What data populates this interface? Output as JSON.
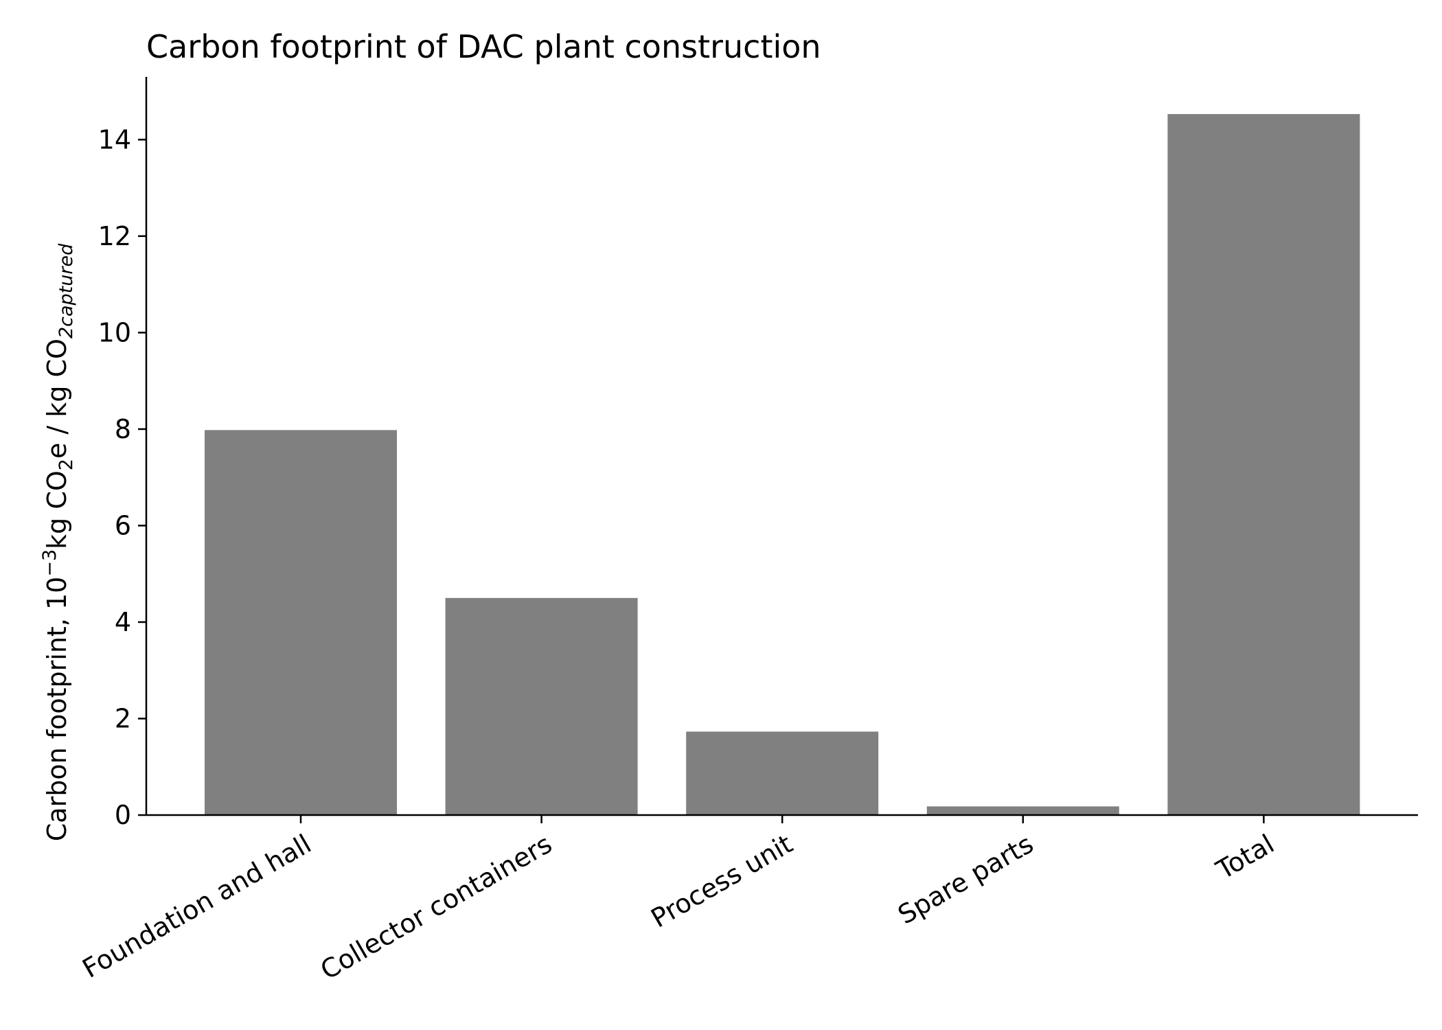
{
  "chart_data": {
    "type": "bar",
    "title": "Carbon footprint of DAC plant construction",
    "ylabel": {
      "prefix": "Carbon footprint, 10",
      "exp": "−3",
      "mid1": "kg CO",
      "sub1": "2",
      "mid2": "e / kg CO",
      "sub2": "2captured"
    },
    "xlabel": "",
    "categories": [
      "Foundation and hall",
      "Collector containers",
      "Process unit",
      "Spare parts",
      "Total"
    ],
    "values": [
      7.98,
      4.5,
      1.73,
      0.18,
      14.53
    ],
    "ylim": [
      0,
      15.3
    ],
    "yticks": [
      0,
      2,
      4,
      6,
      8,
      10,
      12,
      14
    ],
    "bar_color": "#808080",
    "grid": false,
    "legend": "none"
  }
}
